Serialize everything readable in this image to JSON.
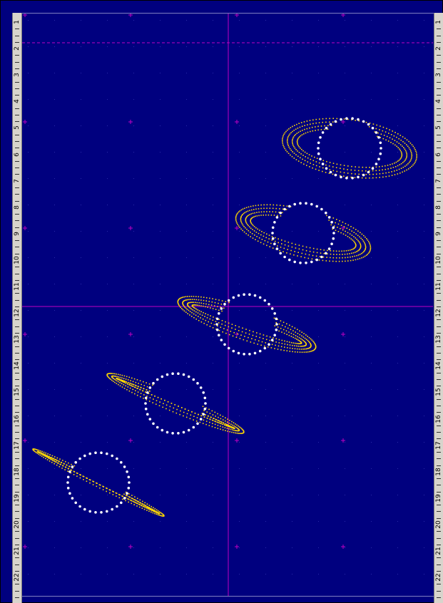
{
  "ruler": {
    "numbers": [
      "1",
      "2",
      "3",
      "4",
      "5",
      "6",
      "7",
      "8",
      "9",
      "10",
      "11",
      "12",
      "13",
      "14",
      "15",
      "16",
      "17",
      "18",
      "19",
      "20",
      "21",
      "22"
    ]
  },
  "colors": {
    "background": "#00007f",
    "grid_line": "#c000c0",
    "planet_dots": "#ffffff",
    "ring_dots": "#ffd800",
    "ruler": "#d8d4cc"
  },
  "icons": {
    "grid_marker": "plus-mark-icon"
  }
}
